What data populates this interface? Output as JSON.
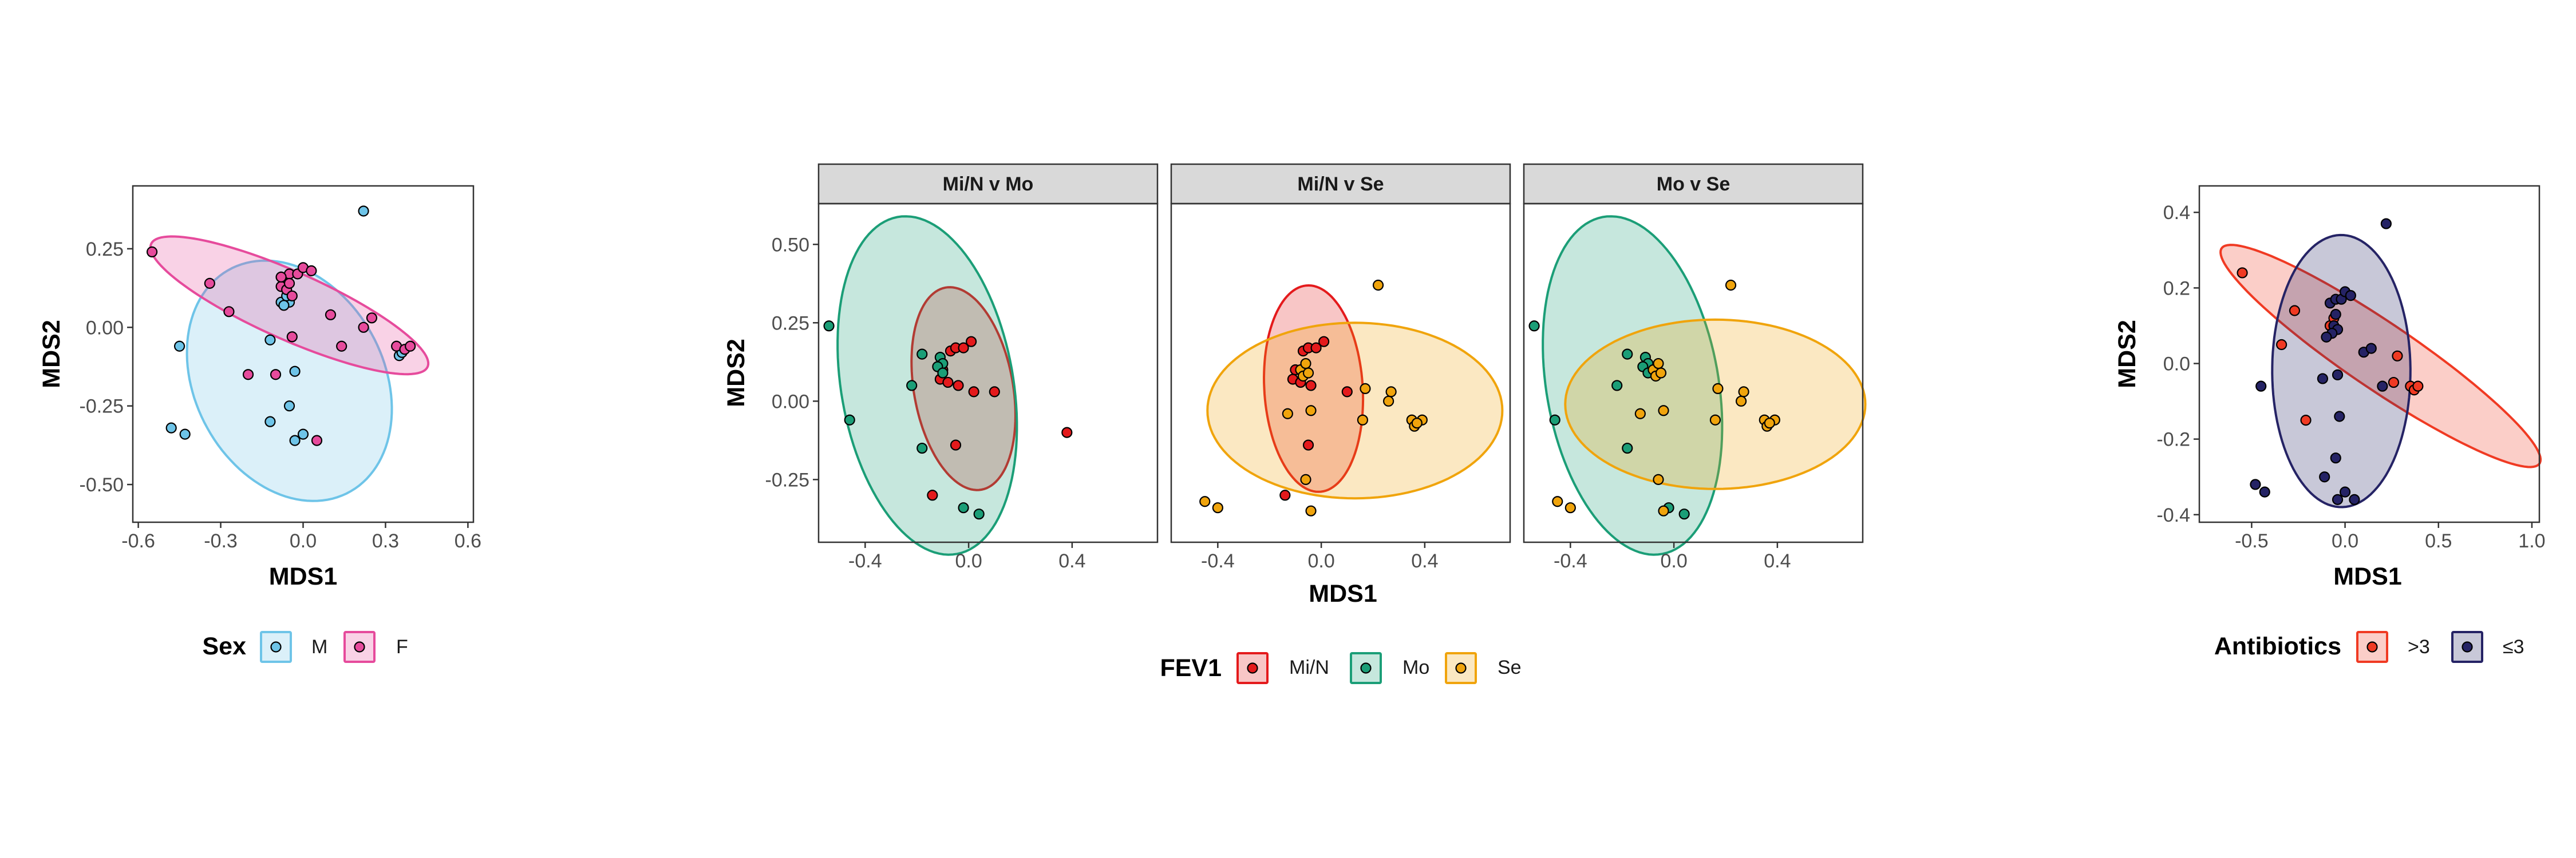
{
  "chart_data": [
    {
      "type": "scatter",
      "panel_id": "sex",
      "xlabel": "MDS1",
      "ylabel": "MDS2",
      "xlim": [
        -0.62,
        0.62
      ],
      "ylim": [
        -0.62,
        0.45
      ],
      "xticks": [
        -0.6,
        -0.3,
        0.0,
        0.3,
        0.6
      ],
      "xtick_labels": [
        "-0.6",
        "-0.3",
        "0.0",
        "0.3",
        "0.6"
      ],
      "yticks": [
        0.25,
        0.0,
        -0.25,
        -0.5
      ],
      "ytick_labels": [
        "0.25",
        "0.00",
        "-0.25",
        "-0.50"
      ],
      "grid": false,
      "legend": {
        "title": "Sex",
        "position": "bottom",
        "entries": [
          "M",
          "F"
        ]
      },
      "series": [
        {
          "name": "M",
          "color": "#6ec4e8",
          "ellipse": {
            "cx": -0.05,
            "cy": -0.17,
            "rx": 0.33,
            "ry": 0.42,
            "angle_deg": 42
          },
          "points": [
            [
              0.22,
              0.37
            ],
            [
              -0.45,
              -0.06
            ],
            [
              -0.48,
              -0.32
            ],
            [
              -0.43,
              -0.34
            ],
            [
              -0.12,
              -0.04
            ],
            [
              -0.03,
              -0.14
            ],
            [
              -0.05,
              -0.25
            ],
            [
              -0.12,
              -0.3
            ],
            [
              -0.03,
              -0.36
            ],
            [
              0.0,
              -0.34
            ],
            [
              -0.08,
              0.08
            ],
            [
              -0.05,
              0.08
            ],
            [
              -0.07,
              0.07
            ],
            [
              0.35,
              -0.09
            ],
            [
              0.36,
              -0.08
            ],
            [
              -0.06,
              0.1
            ]
          ]
        },
        {
          "name": "F",
          "color": "#e64b9c",
          "ellipse": {
            "cx": -0.05,
            "cy": 0.07,
            "rx": 0.54,
            "ry": 0.11,
            "angle_deg": -21
          },
          "points": [
            [
              -0.55,
              0.24
            ],
            [
              -0.34,
              0.14
            ],
            [
              -0.27,
              0.05
            ],
            [
              -0.2,
              -0.15
            ],
            [
              -0.08,
              0.16
            ],
            [
              -0.05,
              0.17
            ],
            [
              -0.02,
              0.17
            ],
            [
              0.0,
              0.19
            ],
            [
              0.03,
              0.18
            ],
            [
              -0.08,
              0.13
            ],
            [
              -0.06,
              0.12
            ],
            [
              -0.04,
              0.1
            ],
            [
              -0.05,
              0.14
            ],
            [
              0.1,
              0.04
            ],
            [
              0.14,
              -0.06
            ],
            [
              0.22,
              0.0
            ],
            [
              0.25,
              0.03
            ],
            [
              0.34,
              -0.06
            ],
            [
              0.37,
              -0.07
            ],
            [
              0.39,
              -0.06
            ],
            [
              0.05,
              -0.36
            ],
            [
              -0.1,
              -0.15
            ],
            [
              -0.04,
              -0.03
            ],
            [
              -0.08,
              0.16
            ]
          ]
        }
      ]
    },
    {
      "type": "scatter",
      "panel_id": "fev1",
      "xlabel": "MDS1",
      "ylabel": "MDS2",
      "xlim": [
        -0.58,
        0.73
      ],
      "ylim": [
        -0.45,
        0.63
      ],
      "xticks": [
        -0.4,
        0.0,
        0.4
      ],
      "xtick_labels": [
        "-0.4",
        "0.0",
        "0.4"
      ],
      "yticks": [
        0.5,
        0.25,
        0.0,
        -0.25
      ],
      "ytick_labels": [
        "0.50",
        "0.25",
        "0.00",
        "-0.25"
      ],
      "grid": false,
      "legend": {
        "title": "FEV1",
        "position": "bottom",
        "entries": [
          "Mi/N",
          "Mo",
          "Se"
        ]
      },
      "colors": {
        "Mi/N": "#e41a1c",
        "Mo": "#1b9e77",
        "Se": "#f0a40c"
      },
      "facets": [
        {
          "strip": "Mi/N v Mo",
          "groups": [
            {
              "name": "Mi/N",
              "ellipse": {
                "cx": -0.02,
                "cy": 0.04,
                "rx": 0.19,
                "ry": 0.33,
                "angle_deg": 14
              },
              "points": [
                [
                  -0.07,
                  0.16
                ],
                [
                  -0.05,
                  0.17
                ],
                [
                  -0.02,
                  0.17
                ],
                [
                  0.01,
                  0.19
                ],
                [
                  -0.1,
                  0.1
                ],
                [
                  -0.11,
                  0.07
                ],
                [
                  -0.08,
                  0.06
                ],
                [
                  -0.04,
                  0.05
                ],
                [
                  0.02,
                  0.03
                ],
                [
                  0.1,
                  0.03
                ],
                [
                  0.38,
                  -0.1
                ],
                [
                  -0.05,
                  -0.14
                ],
                [
                  -0.14,
                  -0.3
                ]
              ]
            },
            {
              "name": "Mo",
              "ellipse": {
                "cx": -0.16,
                "cy": 0.05,
                "rx": 0.33,
                "ry": 0.55,
                "angle_deg": 14
              },
              "points": [
                [
                  -0.54,
                  0.24
                ],
                [
                  -0.46,
                  -0.06
                ],
                [
                  -0.22,
                  0.05
                ],
                [
                  -0.18,
                  0.15
                ],
                [
                  -0.11,
                  0.14
                ],
                [
                  -0.1,
                  0.12
                ],
                [
                  -0.12,
                  0.11
                ],
                [
                  -0.1,
                  0.09
                ],
                [
                  -0.18,
                  -0.15
                ],
                [
                  -0.02,
                  -0.34
                ],
                [
                  0.04,
                  -0.36
                ]
              ]
            }
          ]
        },
        {
          "strip": "Mi/N v Se",
          "groups": [
            {
              "name": "Mi/N",
              "ellipse": {
                "cx": -0.03,
                "cy": 0.04,
                "rx": 0.19,
                "ry": 0.33,
                "angle_deg": 5
              },
              "points": [
                [
                  -0.07,
                  0.16
                ],
                [
                  -0.05,
                  0.17
                ],
                [
                  -0.02,
                  0.17
                ],
                [
                  0.01,
                  0.19
                ],
                [
                  -0.1,
                  0.1
                ],
                [
                  -0.11,
                  0.07
                ],
                [
                  -0.08,
                  0.06
                ],
                [
                  -0.04,
                  0.05
                ],
                [
                  -0.05,
                  -0.14
                ],
                [
                  -0.14,
                  -0.3
                ],
                [
                  0.1,
                  0.03
                ]
              ]
            },
            {
              "name": "Se",
              "ellipse": {
                "cx": 0.13,
                "cy": -0.03,
                "rx": 0.57,
                "ry": 0.28,
                "angle_deg": 0
              },
              "points": [
                [
                  0.22,
                  0.37
                ],
                [
                  -0.45,
                  -0.32
                ],
                [
                  -0.4,
                  -0.34
                ],
                [
                  -0.08,
                  0.1
                ],
                [
                  -0.07,
                  0.08
                ],
                [
                  -0.05,
                  0.09
                ],
                [
                  -0.06,
                  0.12
                ],
                [
                  -0.13,
                  -0.04
                ],
                [
                  -0.04,
                  -0.03
                ],
                [
                  -0.06,
                  -0.25
                ],
                [
                  -0.04,
                  -0.35
                ],
                [
                  0.17,
                  0.04
                ],
                [
                  0.26,
                  0.0
                ],
                [
                  0.27,
                  0.03
                ],
                [
                  0.35,
                  -0.06
                ],
                [
                  0.36,
                  -0.08
                ],
                [
                  0.39,
                  -0.06
                ],
                [
                  0.37,
                  -0.07
                ],
                [
                  0.16,
                  -0.06
                ]
              ]
            }
          ]
        },
        {
          "strip": "Mo v Se",
          "groups": [
            {
              "name": "Mo",
              "ellipse": {
                "cx": -0.16,
                "cy": 0.05,
                "rx": 0.33,
                "ry": 0.55,
                "angle_deg": 14
              },
              "points": [
                [
                  -0.54,
                  0.24
                ],
                [
                  -0.46,
                  -0.06
                ],
                [
                  -0.22,
                  0.05
                ],
                [
                  -0.18,
                  0.15
                ],
                [
                  -0.11,
                  0.14
                ],
                [
                  -0.1,
                  0.12
                ],
                [
                  -0.12,
                  0.11
                ],
                [
                  -0.1,
                  0.09
                ],
                [
                  -0.18,
                  -0.15
                ],
                [
                  -0.02,
                  -0.34
                ],
                [
                  0.04,
                  -0.36
                ]
              ]
            },
            {
              "name": "Se",
              "ellipse": {
                "cx": 0.16,
                "cy": -0.01,
                "rx": 0.58,
                "ry": 0.27,
                "angle_deg": 0
              },
              "points": [
                [
                  0.22,
                  0.37
                ],
                [
                  -0.45,
                  -0.32
                ],
                [
                  -0.4,
                  -0.34
                ],
                [
                  -0.08,
                  0.1
                ],
                [
                  -0.07,
                  0.08
                ],
                [
                  -0.05,
                  0.09
                ],
                [
                  -0.06,
                  0.12
                ],
                [
                  -0.13,
                  -0.04
                ],
                [
                  -0.04,
                  -0.03
                ],
                [
                  -0.06,
                  -0.25
                ],
                [
                  -0.04,
                  -0.35
                ],
                [
                  0.17,
                  0.04
                ],
                [
                  0.26,
                  0.0
                ],
                [
                  0.27,
                  0.03
                ],
                [
                  0.35,
                  -0.06
                ],
                [
                  0.36,
                  -0.08
                ],
                [
                  0.39,
                  -0.06
                ],
                [
                  0.37,
                  -0.07
                ],
                [
                  0.16,
                  -0.06
                ]
              ]
            }
          ]
        }
      ]
    },
    {
      "type": "scatter",
      "panel_id": "antibiotics",
      "xlabel": "MDS1",
      "ylabel": "MDS2",
      "xlim": [
        -0.78,
        1.04
      ],
      "ylim": [
        -0.42,
        0.47
      ],
      "xticks": [
        -0.5,
        0.0,
        0.5,
        1.0
      ],
      "xtick_labels": [
        "-0.5",
        "0.0",
        "0.5",
        "1.0"
      ],
      "yticks": [
        0.4,
        0.2,
        0.0,
        -0.2,
        -0.4
      ],
      "ytick_labels": [
        "0.4",
        "0.2",
        "0.0",
        "-0.2",
        "-0.4"
      ],
      "grid": false,
      "legend": {
        "title": "Antibiotics",
        "position": "bottom",
        "entries": [
          ">3",
          "≤3"
        ]
      },
      "series": [
        {
          "name": ">3",
          "color": "#f03a23",
          "ellipse": {
            "cx": 0.19,
            "cy": 0.02,
            "rx": 0.9,
            "ry": 0.1,
            "angle_deg": -18
          },
          "points": [
            [
              -0.55,
              0.24
            ],
            [
              -0.27,
              0.14
            ],
            [
              -0.34,
              0.05
            ],
            [
              -0.21,
              -0.15
            ],
            [
              -0.08,
              0.1
            ],
            [
              -0.06,
              0.12
            ],
            [
              0.35,
              -0.06
            ],
            [
              0.37,
              -0.07
            ],
            [
              0.39,
              -0.06
            ],
            [
              0.28,
              0.02
            ],
            [
              0.26,
              -0.05
            ]
          ]
        },
        {
          "name": "≤3",
          "color": "#252365",
          "ellipse": {
            "cx": -0.02,
            "cy": -0.02,
            "rx": 0.37,
            "ry": 0.36,
            "angle_deg": -2
          },
          "points": [
            [
              0.22,
              0.37
            ],
            [
              -0.45,
              -0.06
            ],
            [
              -0.48,
              -0.32
            ],
            [
              -0.43,
              -0.34
            ],
            [
              -0.08,
              0.16
            ],
            [
              -0.05,
              0.17
            ],
            [
              -0.02,
              0.17
            ],
            [
              0.0,
              0.19
            ],
            [
              0.03,
              0.18
            ],
            [
              -0.06,
              0.1
            ],
            [
              -0.04,
              0.09
            ],
            [
              -0.05,
              0.13
            ],
            [
              -0.07,
              0.08
            ],
            [
              -0.1,
              0.07
            ],
            [
              0.1,
              0.03
            ],
            [
              0.14,
              0.04
            ],
            [
              0.2,
              -0.06
            ],
            [
              -0.12,
              -0.04
            ],
            [
              -0.03,
              -0.14
            ],
            [
              -0.05,
              -0.25
            ],
            [
              -0.11,
              -0.3
            ],
            [
              -0.04,
              -0.36
            ],
            [
              0.0,
              -0.34
            ],
            [
              0.05,
              -0.36
            ],
            [
              -0.04,
              -0.03
            ]
          ]
        }
      ]
    }
  ]
}
